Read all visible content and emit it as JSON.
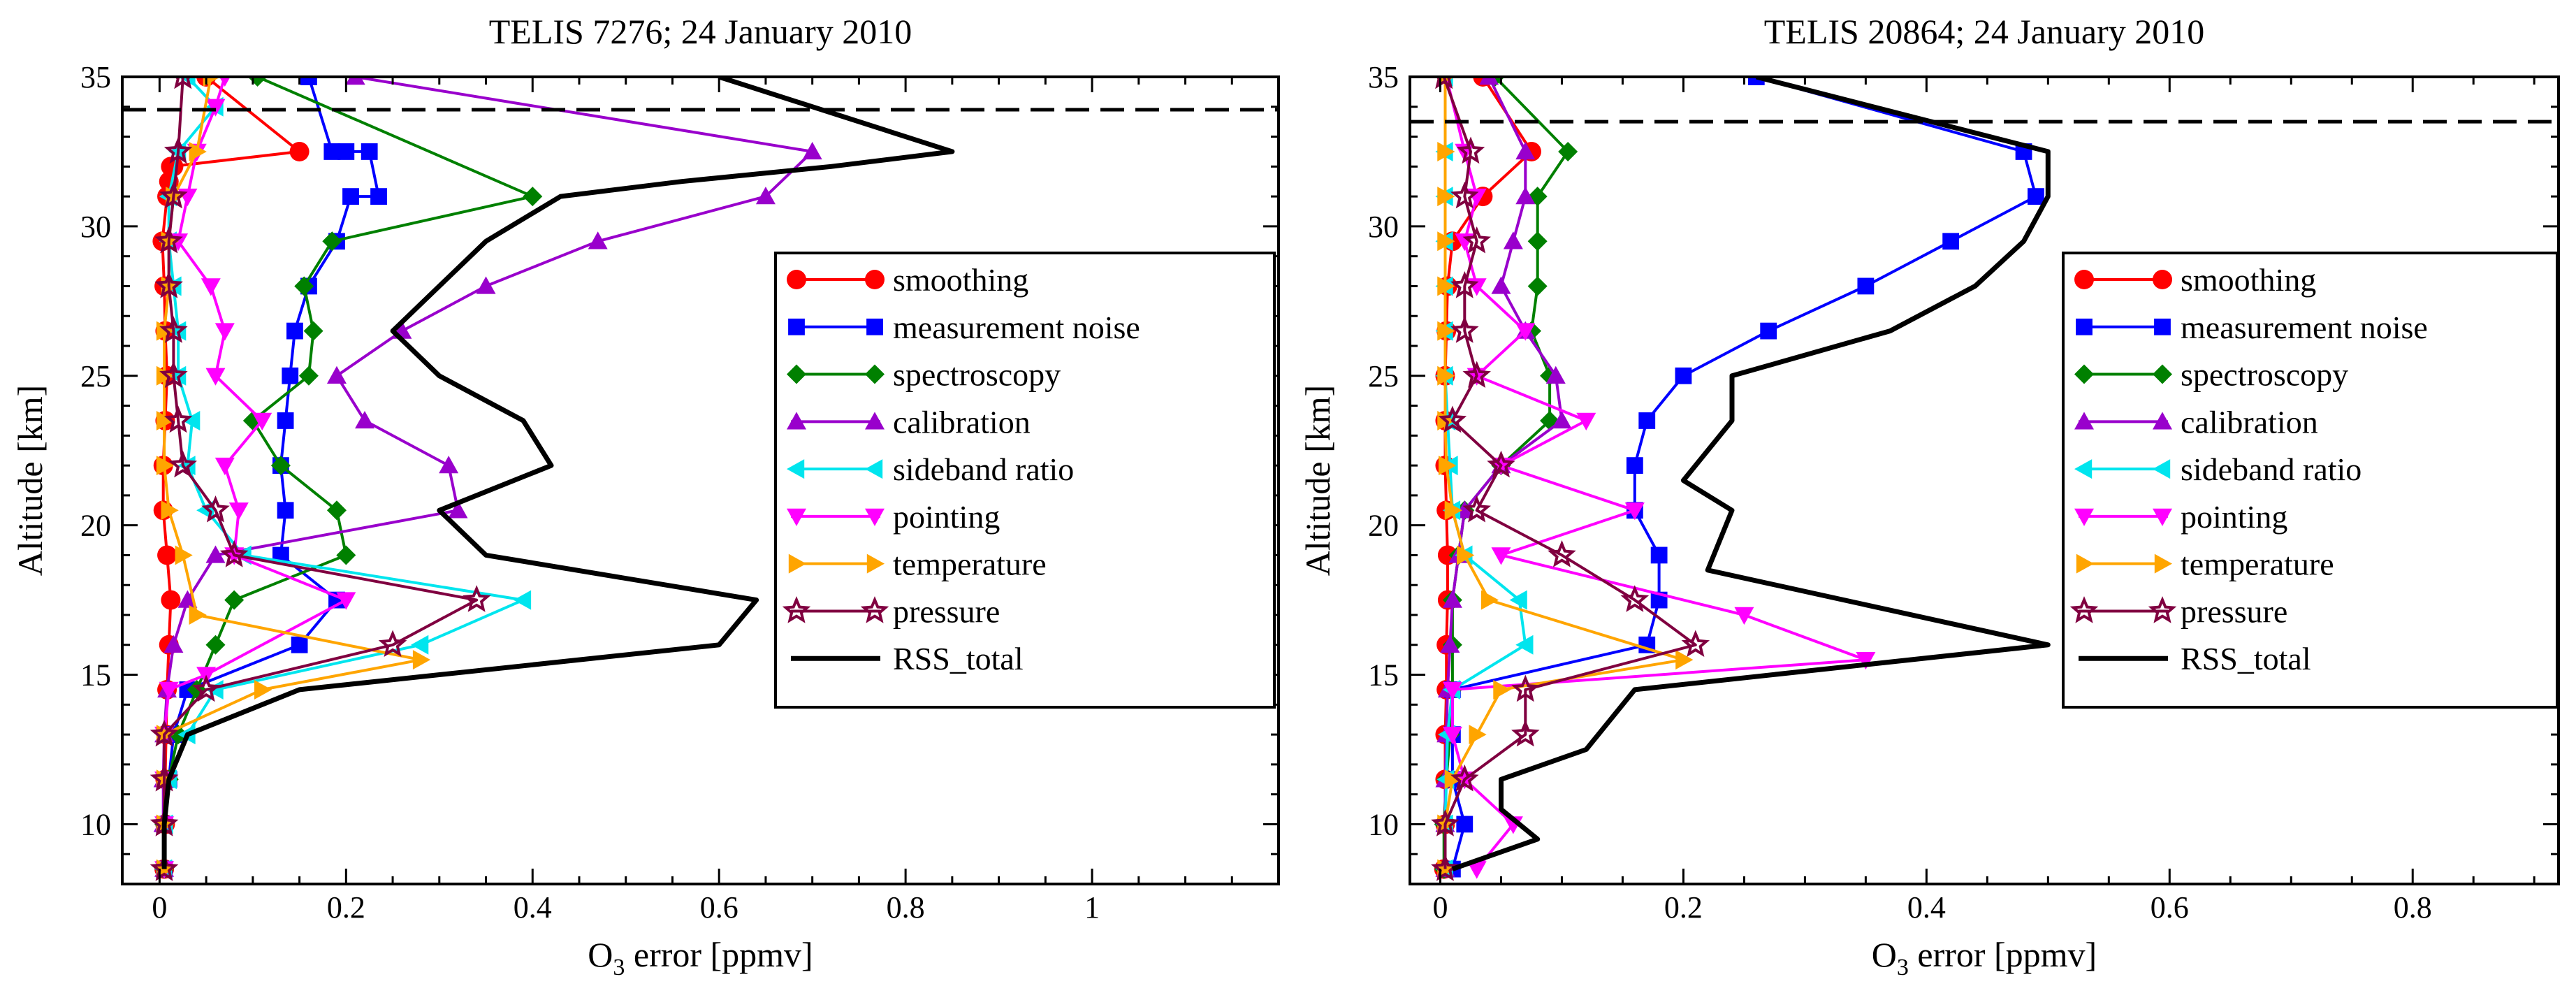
{
  "chart_data": [
    {
      "type": "line",
      "title": "TELIS 7276; 24 January 2010",
      "xlabel_main": "O",
      "xlabel_sub": "3",
      "xlabel_rest": " error [ppmv]",
      "ylabel": "Altitude [km]",
      "xlim": [
        -0.04,
        1.2
      ],
      "ylim": [
        8,
        35
      ],
      "xticks": [
        0,
        0.2,
        0.4,
        0.6,
        0.8,
        1
      ],
      "xtick_labels": [
        "0",
        "0.2",
        "0.4",
        "0.6",
        "0.8",
        "1"
      ],
      "yticks": [
        10,
        15,
        20,
        25,
        30,
        35
      ],
      "ytick_labels": [
        "10",
        "15",
        "20",
        "25",
        "30",
        "35"
      ],
      "reference_line_altitude": 33.9,
      "legend_position": "right",
      "series": [
        {
          "name": "smoothing",
          "color": "#ff0000",
          "marker": "circle",
          "x": [
            0.005,
            0.006,
            0.006,
            0.007,
            0.008,
            0.01,
            0.012,
            0.008,
            0.004,
            0.004,
            0.006,
            0.008,
            0.006,
            0.005,
            0.003,
            0.008,
            0.01,
            0.015,
            0.012,
            0.15,
            0.05
          ],
          "y": [
            8.5,
            10,
            11.5,
            13,
            14.5,
            16,
            17.5,
            19,
            20.5,
            22,
            23.5,
            25,
            26.5,
            28,
            29.5,
            31,
            31.5,
            32,
            32,
            32.5,
            35
          ]
        },
        {
          "name": "measurement noise",
          "color": "#0000ff",
          "marker": "square",
          "x": [
            0.005,
            0.005,
            0.01,
            0.015,
            0.03,
            0.15,
            0.19,
            0.13,
            0.135,
            0.13,
            0.135,
            0.14,
            0.145,
            0.16,
            0.19,
            0.205,
            0.235,
            0.225,
            0.2,
            0.185,
            0.16
          ],
          "y": [
            8.5,
            10,
            11.5,
            13,
            14.5,
            16,
            17.5,
            19,
            20.5,
            22,
            23.5,
            25,
            26.5,
            28,
            29.5,
            31,
            31,
            32.5,
            32.5,
            32.5,
            35
          ]
        },
        {
          "name": "spectroscopy",
          "color": "#008000",
          "marker": "diamond",
          "x": [
            0.005,
            0.005,
            0.01,
            0.02,
            0.04,
            0.06,
            0.08,
            0.2,
            0.19,
            0.13,
            0.1,
            0.16,
            0.165,
            0.155,
            0.185,
            0.4,
            0.105
          ],
          "y": [
            8.5,
            10,
            11.5,
            13,
            14.5,
            16,
            17.5,
            19,
            20.5,
            22,
            23.5,
            25,
            26.5,
            28,
            29.5,
            31,
            35
          ]
        },
        {
          "name": "calibration",
          "color": "#9900cc",
          "marker": "triangle-up",
          "x": [
            0.005,
            0.004,
            0.004,
            0.005,
            0.008,
            0.015,
            0.03,
            0.06,
            0.32,
            0.31,
            0.22,
            0.19,
            0.26,
            0.35,
            0.47,
            0.65,
            0.7,
            0.21
          ],
          "y": [
            8.5,
            10,
            11.5,
            13,
            14.5,
            16,
            17.5,
            19,
            20.5,
            22,
            23.5,
            25,
            26.5,
            28,
            29.5,
            31,
            32.5,
            35
          ]
        },
        {
          "name": "sideband ratio",
          "color": "#00e5ee",
          "marker": "triangle-left",
          "x": [
            0.005,
            0.006,
            0.01,
            0.03,
            0.06,
            0.28,
            0.39,
            0.09,
            0.05,
            0.03,
            0.035,
            0.02,
            0.02,
            0.015,
            0.01,
            0.01,
            0.02,
            0.06,
            0.03
          ],
          "y": [
            8.5,
            10,
            11.5,
            13,
            14.5,
            16,
            17.5,
            19,
            20.5,
            22,
            23.5,
            25,
            26.5,
            28,
            29.5,
            31,
            32.5,
            34,
            35
          ]
        },
        {
          "name": "pointing",
          "color": "#ff00ff",
          "marker": "triangle-down",
          "x": [
            0.005,
            0.005,
            0.005,
            0.005,
            0.01,
            0.05,
            0.2,
            0.08,
            0.085,
            0.07,
            0.11,
            0.06,
            0.07,
            0.055,
            0.02,
            0.03,
            0.04,
            0.06,
            0.07
          ],
          "y": [
            8.5,
            10,
            11.5,
            13,
            14.5,
            15,
            17.5,
            19,
            20.5,
            22,
            23.5,
            25,
            26.5,
            28,
            29.5,
            31,
            32.5,
            34,
            35
          ]
        },
        {
          "name": "temperature",
          "color": "#ffa500",
          "marker": "triangle-right",
          "x": [
            0.005,
            0.005,
            0.005,
            0.005,
            0.11,
            0.28,
            0.04,
            0.025,
            0.01,
            0.005,
            0.005,
            0.005,
            0.005,
            0.01,
            0.01,
            0.015,
            0.04,
            0.055
          ],
          "y": [
            8.5,
            10,
            11.5,
            13,
            14.5,
            15.5,
            17,
            19,
            20.5,
            22,
            23.5,
            25,
            26.5,
            28,
            29.5,
            31,
            32.5,
            35
          ]
        },
        {
          "name": "pressure",
          "color": "#800040",
          "marker": "star",
          "x": [
            0.005,
            0.005,
            0.005,
            0.005,
            0.05,
            0.25,
            0.34,
            0.08,
            0.06,
            0.025,
            0.02,
            0.015,
            0.015,
            0.01,
            0.01,
            0.015,
            0.02,
            0.025
          ],
          "y": [
            8.5,
            10,
            11.5,
            13,
            14.5,
            16,
            17.5,
            19,
            20.5,
            22,
            23.5,
            25,
            26.5,
            28,
            29.5,
            31,
            32.5,
            35
          ]
        },
        {
          "name": "RSS_total",
          "color": "#000000",
          "marker": "none",
          "x": [
            0.005,
            0.005,
            0.01,
            0.03,
            0.15,
            0.6,
            0.64,
            0.35,
            0.3,
            0.42,
            0.39,
            0.3,
            0.25,
            0.3,
            0.35,
            0.43,
            0.56,
            0.72,
            0.85,
            0.6
          ],
          "y": [
            8.5,
            10,
            11.5,
            13,
            14.5,
            16,
            17.5,
            19,
            20.5,
            22,
            23.5,
            25,
            26.5,
            28,
            29.5,
            31,
            31.5,
            32,
            32.5,
            35
          ]
        }
      ]
    },
    {
      "type": "line",
      "title": "TELIS 20864; 24 January 2010",
      "xlabel_main": "O",
      "xlabel_sub": "3",
      "xlabel_rest": " error [ppmv]",
      "ylabel": "Altitude [km]",
      "xlim": [
        -0.025,
        0.92
      ],
      "ylim": [
        8,
        35
      ],
      "xticks": [
        0,
        0.2,
        0.4,
        0.6,
        0.8
      ],
      "xtick_labels": [
        "0",
        "0.2",
        "0.4",
        "0.6",
        "0.8"
      ],
      "yticks": [
        10,
        15,
        20,
        25,
        30,
        35
      ],
      "ytick_labels": [
        "10",
        "15",
        "20",
        "25",
        "30",
        "35"
      ],
      "reference_line_altitude": 33.5,
      "legend_position": "right",
      "series": [
        {
          "name": "smoothing",
          "color": "#ff0000",
          "marker": "circle",
          "x": [
            0.003,
            0.004,
            0.004,
            0.004,
            0.005,
            0.005,
            0.006,
            0.006,
            0.005,
            0.004,
            0.004,
            0.004,
            0.005,
            0.006,
            0.01,
            0.035,
            0.075,
            0.035
          ],
          "y": [
            8.5,
            10,
            11.5,
            13,
            14.5,
            16,
            17.5,
            19,
            20.5,
            22,
            23.5,
            25,
            26.5,
            28,
            29.5,
            31,
            32.5,
            35
          ]
        },
        {
          "name": "measurement noise",
          "color": "#0000ff",
          "marker": "square",
          "x": [
            0.01,
            0.02,
            0.01,
            0.01,
            0.01,
            0.17,
            0.18,
            0.18,
            0.16,
            0.16,
            0.17,
            0.2,
            0.27,
            0.35,
            0.42,
            0.49,
            0.48,
            0.26
          ],
          "y": [
            8.5,
            10,
            11.5,
            13,
            14.5,
            16,
            17.5,
            19,
            20.5,
            22,
            23.5,
            25,
            26.5,
            28,
            29.5,
            31,
            32.5,
            35
          ]
        },
        {
          "name": "spectroscopy",
          "color": "#008000",
          "marker": "diamond",
          "x": [
            0.003,
            0.003,
            0.005,
            0.008,
            0.01,
            0.01,
            0.01,
            0.015,
            0.02,
            0.05,
            0.09,
            0.09,
            0.075,
            0.08,
            0.08,
            0.08,
            0.105,
            0.045
          ],
          "y": [
            8.5,
            10,
            11.5,
            13,
            14.5,
            16,
            17.5,
            19,
            20.5,
            22,
            23.5,
            25,
            26.5,
            28,
            29.5,
            31,
            32.5,
            35
          ]
        },
        {
          "name": "calibration",
          "color": "#9900cc",
          "marker": "triangle-up",
          "x": [
            0.004,
            0.004,
            0.004,
            0.005,
            0.006,
            0.008,
            0.01,
            0.015,
            0.02,
            0.05,
            0.1,
            0.095,
            0.07,
            0.05,
            0.06,
            0.07,
            0.07,
            0.04
          ],
          "y": [
            8.5,
            10,
            11.5,
            13,
            14.5,
            16,
            17.5,
            19,
            20.5,
            22,
            23.5,
            25,
            26.5,
            28,
            29.5,
            31,
            32.5,
            35
          ]
        },
        {
          "name": "sideband ratio",
          "color": "#00e5ee",
          "marker": "triangle-left",
          "x": [
            0.004,
            0.004,
            0.005,
            0.006,
            0.01,
            0.07,
            0.065,
            0.02,
            0.01,
            0.008,
            0.006,
            0.004,
            0.004,
            0.004,
            0.004,
            0.004,
            0.004,
            0.004
          ],
          "y": [
            8.5,
            10,
            11.5,
            13,
            14.5,
            16,
            17.5,
            19,
            20.5,
            22,
            23.5,
            25,
            26.5,
            28,
            29.5,
            31,
            32.5,
            35
          ]
        },
        {
          "name": "pointing",
          "color": "#ff00ff",
          "marker": "triangle-down",
          "x": [
            0.03,
            0.06,
            0.02,
            0.01,
            0.01,
            0.35,
            0.25,
            0.05,
            0.16,
            0.05,
            0.12,
            0.03,
            0.07,
            0.03,
            0.02,
            0.03,
            0.02,
            0.005
          ],
          "y": [
            8.5,
            10,
            11.5,
            13,
            14.5,
            15.5,
            17,
            19,
            20.5,
            22,
            23.5,
            25,
            26.5,
            28,
            29.5,
            31,
            32.5,
            35
          ]
        },
        {
          "name": "temperature",
          "color": "#ffa500",
          "marker": "triangle-right",
          "x": [
            0.004,
            0.004,
            0.01,
            0.03,
            0.05,
            0.2,
            0.04,
            0.02,
            0.01,
            0.005,
            0.004,
            0.004,
            0.004,
            0.004,
            0.004,
            0.004,
            0.004,
            0.004
          ],
          "y": [
            8.5,
            10,
            11.5,
            13,
            14.5,
            15.5,
            17.5,
            19,
            20.5,
            22,
            23.5,
            25,
            26.5,
            28,
            29.5,
            31,
            32.5,
            35
          ]
        },
        {
          "name": "pressure",
          "color": "#800040",
          "marker": "star",
          "x": [
            0.004,
            0.004,
            0.02,
            0.07,
            0.07,
            0.21,
            0.16,
            0.1,
            0.03,
            0.05,
            0.01,
            0.03,
            0.02,
            0.02,
            0.03,
            0.02,
            0.025,
            0.003
          ],
          "y": [
            8.5,
            10,
            11.5,
            13,
            14.5,
            16,
            17.5,
            19,
            20.5,
            22,
            23.5,
            25,
            26.5,
            28,
            29.5,
            31,
            32.5,
            35
          ]
        },
        {
          "name": "RSS_total",
          "color": "#000000",
          "marker": "none",
          "x": [
            0.01,
            0.08,
            0.05,
            0.05,
            0.12,
            0.16,
            0.5,
            0.22,
            0.24,
            0.2,
            0.24,
            0.24,
            0.37,
            0.44,
            0.48,
            0.5,
            0.5,
            0.26
          ],
          "y": [
            8.5,
            9.5,
            10.5,
            11.5,
            12.5,
            14.5,
            16,
            18.5,
            20.5,
            21.5,
            23.5,
            25,
            26.5,
            28,
            29.5,
            31,
            32.5,
            35
          ]
        }
      ]
    }
  ]
}
